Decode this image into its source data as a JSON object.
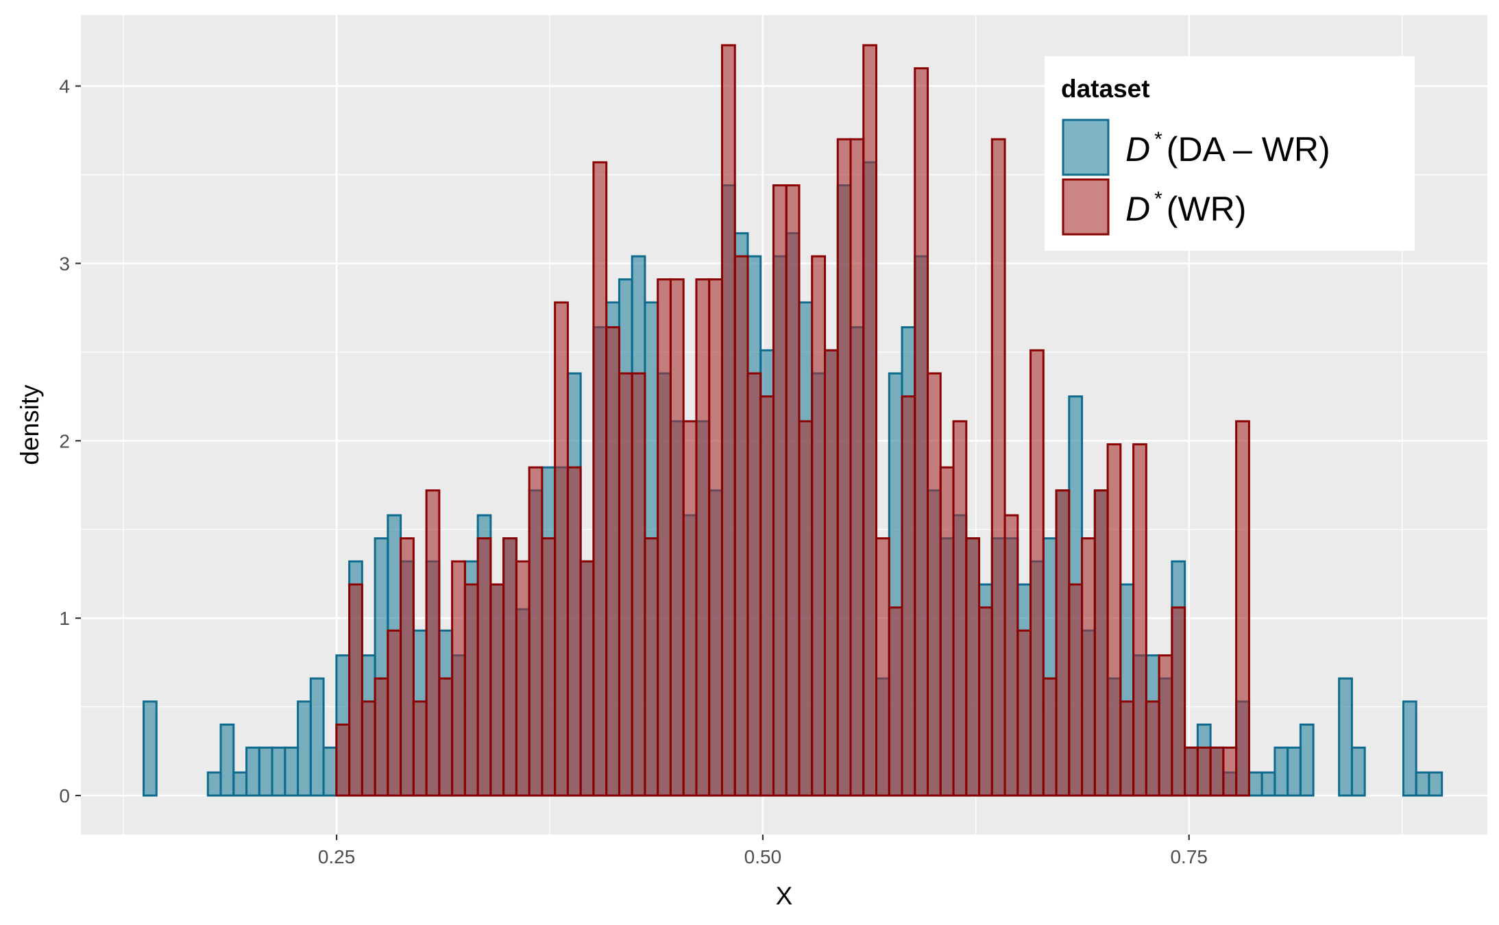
{
  "chart_data": {
    "type": "bar",
    "xlabel": "X",
    "ylabel": "density",
    "xlim": [
      0.1,
      0.925
    ],
    "ylim": [
      -0.22,
      4.4
    ],
    "x_ticks": [
      0.25,
      0.5,
      0.75
    ],
    "x_tick_labels": [
      "0.25",
      "0.50",
      "0.75"
    ],
    "y_ticks": [
      0,
      1,
      2,
      3,
      4
    ],
    "y_tick_labels": [
      "0",
      "1",
      "2",
      "3",
      "4"
    ],
    "grid": true,
    "legend_position": "top-right",
    "legend": {
      "title": "dataset",
      "entries": [
        {
          "label_main": "D",
          "label_sup": "*",
          "label_rest": "(DA – WR)"
        },
        {
          "label_main": "D",
          "label_sup": "*",
          "label_rest": "(WR)"
        }
      ]
    },
    "series": [
      {
        "fill": "#2b84a0",
        "stroke": "#0f6b8e",
        "start": 0.1368,
        "binwidth": 0.00754,
        "values": [
          0.53,
          0,
          0,
          0,
          0,
          0.13,
          0.4,
          0.13,
          0.27,
          0.27,
          0.27,
          0.27,
          0.53,
          0.66,
          0.27,
          0.79,
          1.32,
          0.79,
          1.45,
          1.58,
          1.32,
          0.93,
          1.32,
          0.93,
          0.79,
          1.32,
          1.58,
          1.19,
          1.45,
          1.05,
          1.72,
          1.85,
          1.85,
          2.38,
          1.32,
          2.64,
          2.78,
          2.91,
          3.04,
          2.78,
          2.38,
          2.11,
          1.58,
          2.11,
          1.72,
          3.44,
          3.17,
          3.04,
          2.51,
          3.04,
          3.17,
          2.78,
          2.38,
          2.51,
          3.44,
          2.64,
          3.57,
          0.66,
          2.38,
          2.64,
          3.04,
          1.72,
          1.45,
          1.58,
          1.45,
          1.19,
          1.45,
          1.45,
          1.19,
          1.32,
          1.45,
          1.72,
          2.25,
          0.93,
          1.72,
          0.66,
          1.19,
          0.79,
          0.79,
          0.66,
          1.32,
          0.27,
          0.4,
          0.27,
          0.13,
          0.53,
          0.13,
          0.13,
          0.27,
          0.27,
          0.4,
          0,
          0,
          0.66,
          0.27,
          0,
          0,
          0,
          0.53,
          0.13,
          0.13
        ]
      },
      {
        "fill": "#a93434",
        "stroke": "#8b0000",
        "start": 0.1368,
        "binwidth": 0.00754,
        "values": [
          0,
          0,
          0,
          0,
          0,
          0,
          0,
          0,
          0,
          0,
          0,
          0,
          0,
          0,
          0,
          0.4,
          1.19,
          0.53,
          0.66,
          0.93,
          1.45,
          0.53,
          1.72,
          0.66,
          1.32,
          1.19,
          1.45,
          1.19,
          1.45,
          1.32,
          1.85,
          1.45,
          2.78,
          1.85,
          1.32,
          3.57,
          2.64,
          2.38,
          2.38,
          1.45,
          2.91,
          2.91,
          2.11,
          2.91,
          2.91,
          4.23,
          3.04,
          2.38,
          2.25,
          3.44,
          3.44,
          2.11,
          3.04,
          2.51,
          3.7,
          3.7,
          4.23,
          1.45,
          1.06,
          2.25,
          4.1,
          2.38,
          1.85,
          2.11,
          1.45,
          1.06,
          3.7,
          1.58,
          0.93,
          2.51,
          0.66,
          1.72,
          1.19,
          1.45,
          1.72,
          1.98,
          0.53,
          1.98,
          0.53,
          0.79,
          1.06,
          0.27,
          0.27,
          0.27,
          0.27,
          2.11,
          0,
          0,
          0,
          0,
          0,
          0,
          0,
          0,
          0,
          0,
          0,
          0,
          0,
          0,
          0
        ]
      }
    ]
  }
}
